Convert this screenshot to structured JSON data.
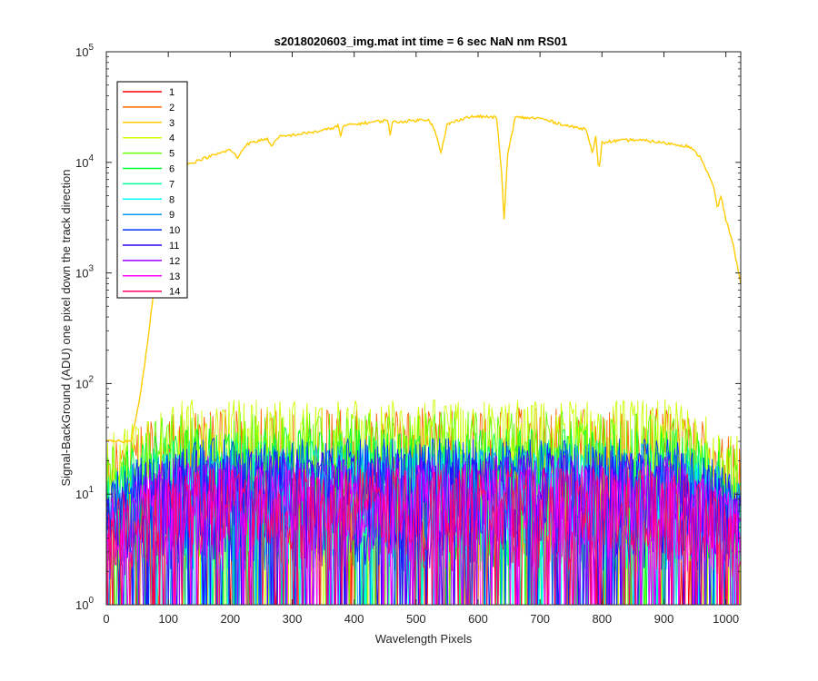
{
  "chart_data": {
    "type": "line",
    "title": "s2018020603_img.mat int time = 6 sec  NaN nm RS01",
    "xlabel": "Wavelength Pixels",
    "ylabel": "Signal-BackGround (ADU) one pixel down the track direction",
    "x_range": [
      0,
      1024
    ],
    "y_range": [
      1,
      100000
    ],
    "y_scale": "log",
    "x_ticks": [
      0,
      100,
      200,
      300,
      400,
      500,
      600,
      700,
      800,
      900,
      1000
    ],
    "x_tick_labels": [
      "0",
      "100",
      "200",
      "300",
      "400",
      "500",
      "600",
      "700",
      "800",
      "900",
      "1000"
    ],
    "y_ticks": [
      1,
      10,
      100,
      1000,
      10000,
      100000
    ],
    "y_tick_labels": [
      {
        "base": "10",
        "exp": "0"
      },
      {
        "base": "10",
        "exp": "1"
      },
      {
        "base": "10",
        "exp": "2"
      },
      {
        "base": "10",
        "exp": "3"
      },
      {
        "base": "10",
        "exp": "4"
      },
      {
        "base": "10",
        "exp": "5"
      }
    ],
    "grid": false,
    "legend_position": "top-left",
    "series": [
      {
        "name": "1",
        "color": "#ff0000",
        "noise_level": 14
      },
      {
        "name": "2",
        "color": "#ff6600",
        "noise_level": 38
      },
      {
        "name": "3",
        "color": "#ffcc00",
        "keypoints": [
          [
            0,
            30
          ],
          [
            40,
            30
          ],
          [
            55,
            80
          ],
          [
            65,
            200
          ],
          [
            80,
            1000
          ],
          [
            100,
            4000
          ],
          [
            115,
            8000
          ],
          [
            130,
            9500
          ],
          [
            150,
            10500
          ],
          [
            200,
            13000
          ],
          [
            212,
            11000
          ],
          [
            225,
            14500
          ],
          [
            260,
            16500
          ],
          [
            265,
            14000
          ],
          [
            280,
            17000
          ],
          [
            340,
            19000
          ],
          [
            360,
            20000
          ],
          [
            375,
            21500
          ],
          [
            378,
            17000
          ],
          [
            383,
            21500
          ],
          [
            440,
            23500
          ],
          [
            455,
            24000
          ],
          [
            458,
            18000
          ],
          [
            462,
            23000
          ],
          [
            520,
            24500
          ],
          [
            530,
            20000
          ],
          [
            540,
            12000
          ],
          [
            545,
            16000
          ],
          [
            550,
            22000
          ],
          [
            580,
            25500
          ],
          [
            600,
            26000
          ],
          [
            630,
            25500
          ],
          [
            638,
            8000
          ],
          [
            642,
            3000
          ],
          [
            648,
            12000
          ],
          [
            660,
            25500
          ],
          [
            700,
            25000
          ],
          [
            750,
            21000
          ],
          [
            775,
            20000
          ],
          [
            785,
            12000
          ],
          [
            790,
            17000
          ],
          [
            795,
            8000
          ],
          [
            800,
            15000
          ],
          [
            815,
            15500
          ],
          [
            850,
            16000
          ],
          [
            880,
            15500
          ],
          [
            940,
            14000
          ],
          [
            960,
            11000
          ],
          [
            980,
            6000
          ],
          [
            987,
            3800
          ],
          [
            992,
            5000
          ],
          [
            1000,
            3000
          ],
          [
            1010,
            2000
          ],
          [
            1018,
            1200
          ],
          [
            1024,
            800
          ]
        ]
      },
      {
        "name": "4",
        "color": "#ccff00",
        "noise_level": 45
      },
      {
        "name": "5",
        "color": "#66ff00",
        "noise_level": 35
      },
      {
        "name": "6",
        "color": "#00ff33",
        "noise_level": 25
      },
      {
        "name": "7",
        "color": "#00ff99",
        "noise_level": 20
      },
      {
        "name": "8",
        "color": "#00ffff",
        "noise_level": 15
      },
      {
        "name": "9",
        "color": "#0099ff",
        "noise_level": 18
      },
      {
        "name": "10",
        "color": "#0033ff",
        "noise_level": 20
      },
      {
        "name": "11",
        "color": "#3300ff",
        "noise_level": 16
      },
      {
        "name": "12",
        "color": "#9900ff",
        "noise_level": 14
      },
      {
        "name": "13",
        "color": "#ff00ff",
        "noise_level": 12
      },
      {
        "name": "14",
        "color": "#ff0066",
        "noise_level": 11
      }
    ]
  }
}
